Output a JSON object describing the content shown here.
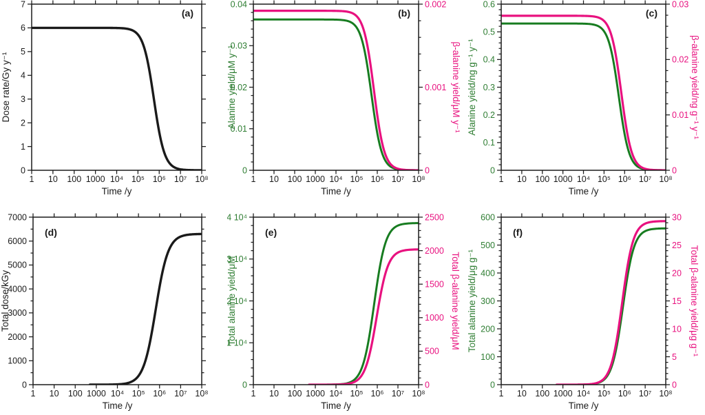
{
  "figure": {
    "background": "#ffffff",
    "colors": {
      "black": "#1a1a1a",
      "green_curve": "#177c20",
      "green_text": "#2e7d32",
      "pink": "#e8117f"
    },
    "x_axis": {
      "title": "Time /y",
      "scale": "log10",
      "range_log": [
        0,
        8
      ],
      "tick_labels": [
        "1",
        "10",
        "100",
        "1000",
        "10⁴",
        "10⁵",
        "10⁶",
        "10⁷",
        "10⁸"
      ]
    }
  },
  "chart_data": [
    {
      "id": "a",
      "type": "line",
      "panel_label": "(a)",
      "label_corner": "tr",
      "left_axis": {
        "title": "Dose rate/Gy y⁻¹",
        "color": "black",
        "range": [
          0,
          7
        ],
        "tick_labels": [
          "0",
          "1",
          "2",
          "3",
          "4",
          "5",
          "6",
          "7"
        ],
        "minor_per_major": 0
      },
      "right_axis": null,
      "series": [
        {
          "name": "dose-rate",
          "axis": "left",
          "color": "black",
          "shape": "decay",
          "plateau": 6.0,
          "mid_log10_t": 5.75,
          "steepness": 4.0,
          "start_log10_t": 0,
          "width": 3.4
        }
      ]
    },
    {
      "id": "b",
      "type": "line",
      "panel_label": "(b)",
      "label_corner": "tr",
      "left_axis": {
        "title": "Alanine yield/μM y⁻¹",
        "color": "green_text",
        "range": [
          0,
          0.04
        ],
        "tick_labels": [
          "0",
          "0.01",
          "0.02",
          "0.03",
          "0.04"
        ],
        "minor_per_major": 4
      },
      "right_axis": {
        "title": "β-alanine yield/μM y⁻¹",
        "color": "pink",
        "range": [
          0,
          0.002
        ],
        "tick_labels": [
          "0",
          "0.001",
          "0.002"
        ],
        "minor_per_major": 4
      },
      "series": [
        {
          "name": "alanine-yield",
          "axis": "left",
          "color": "green_curve",
          "shape": "decay",
          "plateau": 0.0363,
          "mid_log10_t": 5.72,
          "steepness": 4.0,
          "start_log10_t": 0,
          "width": 3.0
        },
        {
          "name": "beta-alanine-yield",
          "axis": "right",
          "color": "pink",
          "shape": "decay",
          "plateau": 0.00192,
          "mid_log10_t": 5.84,
          "steepness": 4.0,
          "start_log10_t": 0,
          "width": 3.2
        }
      ]
    },
    {
      "id": "c",
      "type": "line",
      "panel_label": "(c)",
      "label_corner": "tr",
      "left_axis": {
        "title": "Alanine yield/ng g⁻¹ y⁻¹",
        "color": "green_text",
        "range": [
          0,
          0.6
        ],
        "tick_labels": [
          "0",
          "0.1",
          "0.2",
          "0.3",
          "0.4",
          "0.5",
          "0.6"
        ],
        "minor_per_major": 4
      },
      "right_axis": {
        "title": "β-alanine yield/ng g⁻¹ y⁻¹",
        "color": "pink",
        "range": [
          0,
          0.03
        ],
        "tick_labels": [
          "0",
          "0.01",
          "0.02",
          "0.03"
        ],
        "minor_per_major": 4
      },
      "series": [
        {
          "name": "alanine-yield",
          "axis": "left",
          "color": "green_curve",
          "shape": "decay",
          "plateau": 0.53,
          "mid_log10_t": 5.72,
          "steepness": 4.0,
          "start_log10_t": 0,
          "width": 3.0
        },
        {
          "name": "beta-alanine-yield",
          "axis": "right",
          "color": "pink",
          "shape": "decay",
          "plateau": 0.0279,
          "mid_log10_t": 5.84,
          "steepness": 4.0,
          "start_log10_t": 0,
          "width": 3.2
        }
      ]
    },
    {
      "id": "d",
      "type": "line",
      "panel_label": "(d)",
      "label_corner": "tl",
      "left_axis": {
        "title": "Total dose/kGy",
        "color": "black",
        "range": [
          0,
          7000
        ],
        "tick_labels": [
          "0",
          "1000",
          "2000",
          "3000",
          "4000",
          "5000",
          "6000",
          "7000"
        ],
        "minor_per_major": 1
      },
      "right_axis": null,
      "series": [
        {
          "name": "total-dose",
          "axis": "left",
          "color": "black",
          "shape": "growth",
          "plateau": 6300,
          "mid_log10_t": 5.82,
          "steepness": 3.4,
          "start_log10_t": 2.7,
          "width": 3.4
        }
      ]
    },
    {
      "id": "e",
      "type": "line",
      "panel_label": "(e)",
      "label_corner": "tl",
      "left_axis": {
        "title": "Total alanine yield/μM",
        "color": "green_text",
        "range": [
          0,
          40000
        ],
        "tick_labels": [
          "0",
          "1 10⁴",
          "2 10⁴",
          "3 10⁴",
          "4 10⁴"
        ],
        "minor_per_major": 4
      },
      "right_axis": {
        "title": "Total β-alanine yield/μM",
        "color": "pink",
        "range": [
          0,
          2500
        ],
        "tick_labels": [
          "0",
          "500",
          "1000",
          "1500",
          "2000",
          "2500"
        ],
        "minor_per_major": 4
      },
      "series": [
        {
          "name": "total-alanine-yield",
          "axis": "left",
          "color": "green_curve",
          "shape": "growth",
          "plateau": 38600,
          "mid_log10_t": 5.85,
          "steepness": 3.6,
          "start_log10_t": 2.7,
          "width": 3.0
        },
        {
          "name": "total-beta-alanine-yield",
          "axis": "right",
          "color": "pink",
          "shape": "growth",
          "plateau": 2020,
          "mid_log10_t": 5.97,
          "steepness": 3.6,
          "start_log10_t": 2.7,
          "width": 3.2
        }
      ]
    },
    {
      "id": "f",
      "type": "line",
      "panel_label": "(f)",
      "label_corner": "tl",
      "left_axis": {
        "title": "Total alanine yield/μg g⁻¹",
        "color": "green_text",
        "range": [
          0,
          600
        ],
        "tick_labels": [
          "0",
          "100",
          "200",
          "300",
          "400",
          "500",
          "600"
        ],
        "minor_per_major": 4
      },
      "right_axis": {
        "title": "Total β-alanine yield/μg g⁻¹",
        "color": "pink",
        "range": [
          0,
          30
        ],
        "tick_labels": [
          "0",
          "5",
          "10",
          "15",
          "20",
          "25",
          "30"
        ],
        "minor_per_major": 4
      },
      "series": [
        {
          "name": "total-alanine-yield",
          "axis": "left",
          "color": "green_curve",
          "shape": "growth",
          "plateau": 560,
          "mid_log10_t": 5.92,
          "steepness": 3.7,
          "start_log10_t": 2.7,
          "width": 3.0
        },
        {
          "name": "total-beta-alanine-yield",
          "axis": "right",
          "color": "pink",
          "shape": "growth",
          "plateau": 29.3,
          "mid_log10_t": 5.88,
          "steepness": 3.7,
          "start_log10_t": 2.7,
          "width": 3.2
        }
      ]
    }
  ]
}
